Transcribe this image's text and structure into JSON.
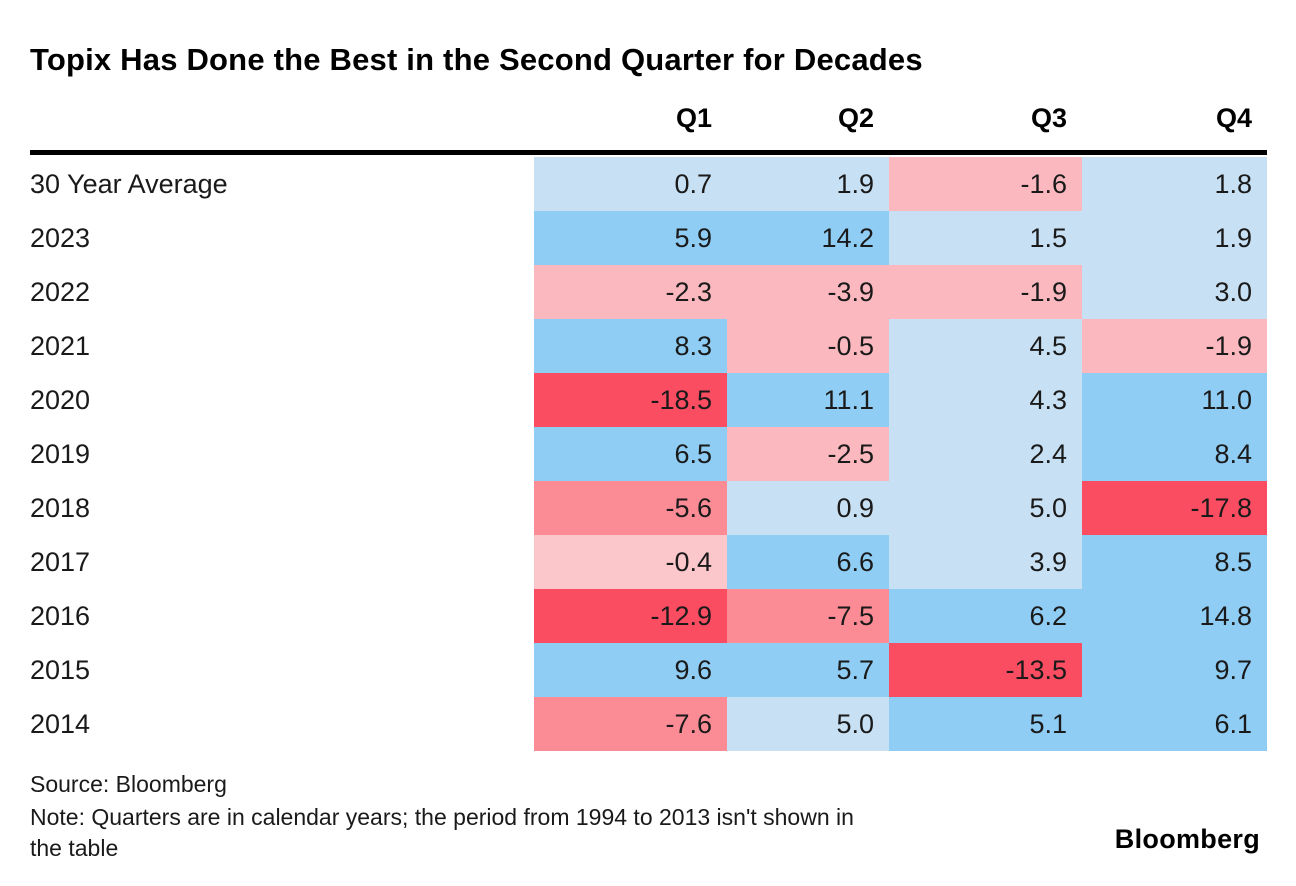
{
  "title": "Topix Has Done the Best in the Second Quarter for Decades",
  "chart_data": {
    "type": "heatmap",
    "columns": [
      "Q1",
      "Q2",
      "Q3",
      "Q4"
    ],
    "rows": [
      {
        "label": "30 Year Average",
        "values": [
          0.7,
          1.9,
          -1.6,
          1.8
        ],
        "colors": [
          "paleBlue",
          "paleBlue",
          "palePink",
          "paleBlue"
        ]
      },
      {
        "label": "2023",
        "values": [
          5.9,
          14.2,
          1.5,
          1.9
        ],
        "colors": [
          "midBlue",
          "midBlue",
          "paleBlue",
          "paleBlue"
        ]
      },
      {
        "label": "2022",
        "values": [
          -2.3,
          -3.9,
          -1.9,
          3.0
        ],
        "colors": [
          "palePink",
          "palePink",
          "palePink",
          "paleBlue"
        ]
      },
      {
        "label": "2021",
        "values": [
          8.3,
          -0.5,
          4.5,
          -1.9
        ],
        "colors": [
          "midBlue",
          "palePink",
          "paleBlue",
          "palePink"
        ]
      },
      {
        "label": "2020",
        "values": [
          -18.5,
          11.1,
          4.3,
          11.0
        ],
        "colors": [
          "red",
          "midBlue",
          "paleBlue",
          "midBlue"
        ]
      },
      {
        "label": "2019",
        "values": [
          6.5,
          -2.5,
          2.4,
          8.4
        ],
        "colors": [
          "midBlue",
          "palePink",
          "paleBlue",
          "midBlue"
        ]
      },
      {
        "label": "2018",
        "values": [
          -5.6,
          0.9,
          5.0,
          -17.8
        ],
        "colors": [
          "midPink",
          "paleBlue",
          "paleBlue",
          "red"
        ]
      },
      {
        "label": "2017",
        "values": [
          -0.4,
          6.6,
          3.9,
          8.5
        ],
        "colors": [
          "lightestPink",
          "midBlue",
          "paleBlue",
          "midBlue"
        ]
      },
      {
        "label": "2016",
        "values": [
          -12.9,
          -7.5,
          6.2,
          14.8
        ],
        "colors": [
          "red",
          "midPink",
          "midBlue",
          "midBlue"
        ]
      },
      {
        "label": "2015",
        "values": [
          9.6,
          5.7,
          -13.5,
          9.7
        ],
        "colors": [
          "midBlue",
          "midBlue",
          "red",
          "midBlue"
        ]
      },
      {
        "label": "2014",
        "values": [
          -7.6,
          5.0,
          5.1,
          6.1
        ],
        "colors": [
          "midPink",
          "paleBlue",
          "midBlue",
          "midBlue"
        ]
      }
    ],
    "palette": {
      "midBlue": "#8fcdf5",
      "paleBlue": "#c7e0f3",
      "lightestPink": "#fcc7cb",
      "palePink": "#fbb9bf",
      "midPink": "#fb8b94",
      "red": "#fb4d62"
    },
    "value_format": "one_decimal",
    "grid": "off",
    "legend": "none"
  },
  "footer": {
    "source": "Source: Bloomberg",
    "note_lines": [
      "Note: Quarters are in calendar years; the period from 1994 to 2013 isn't shown in",
      "the table"
    ],
    "brand": "Bloomberg"
  }
}
